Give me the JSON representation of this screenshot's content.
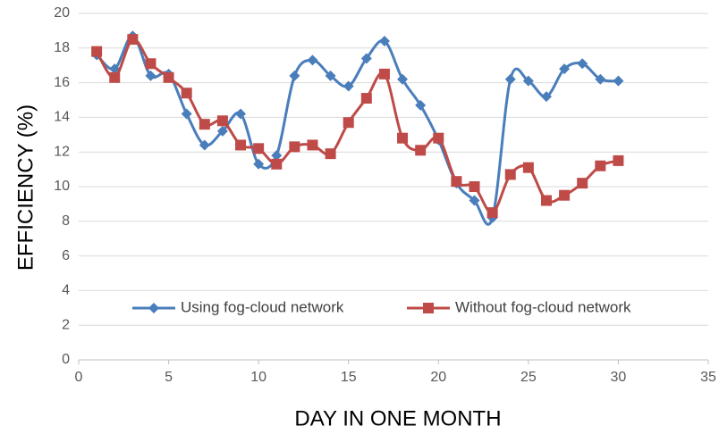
{
  "chart_data": {
    "type": "line",
    "xlabel": "DAY IN ONE MONTH",
    "ylabel": "EFFICIENCY (%)",
    "x": [
      1,
      2,
      3,
      4,
      5,
      6,
      7,
      8,
      9,
      10,
      11,
      12,
      13,
      14,
      15,
      16,
      17,
      18,
      19,
      20,
      21,
      22,
      23,
      24,
      25,
      26,
      27,
      28,
      29,
      30
    ],
    "series": [
      {
        "name": "Using fog-cloud network",
        "color": "#4a7ebb",
        "marker": "diamond",
        "values": [
          17.6,
          16.8,
          18.7,
          16.4,
          16.5,
          14.2,
          12.4,
          13.2,
          14.2,
          11.3,
          11.8,
          16.4,
          17.3,
          16.4,
          15.8,
          17.4,
          18.4,
          16.2,
          14.7,
          12.7,
          10.2,
          9.2,
          8.2,
          16.2,
          16.1,
          15.2,
          16.8,
          17.1,
          16.2,
          16.1
        ]
      },
      {
        "name": "Without fog-cloud network",
        "color": "#be4b48",
        "marker": "square",
        "values": [
          17.8,
          16.3,
          18.5,
          17.1,
          16.3,
          15.4,
          13.6,
          13.8,
          12.4,
          12.2,
          11.3,
          12.3,
          12.4,
          11.9,
          13.7,
          15.1,
          16.5,
          12.8,
          12.1,
          12.8,
          10.3,
          10.0,
          8.5,
          10.7,
          11.1,
          9.2,
          9.5,
          10.2,
          11.2,
          11.5
        ]
      }
    ],
    "xlim": [
      0,
      35
    ],
    "xticks": [
      0,
      5,
      10,
      15,
      20,
      25,
      30,
      35
    ],
    "ylim": [
      0,
      20
    ],
    "yticks": [
      0,
      2,
      4,
      6,
      8,
      10,
      12,
      14,
      16,
      18,
      20
    ],
    "grid": true,
    "smooth": true
  }
}
